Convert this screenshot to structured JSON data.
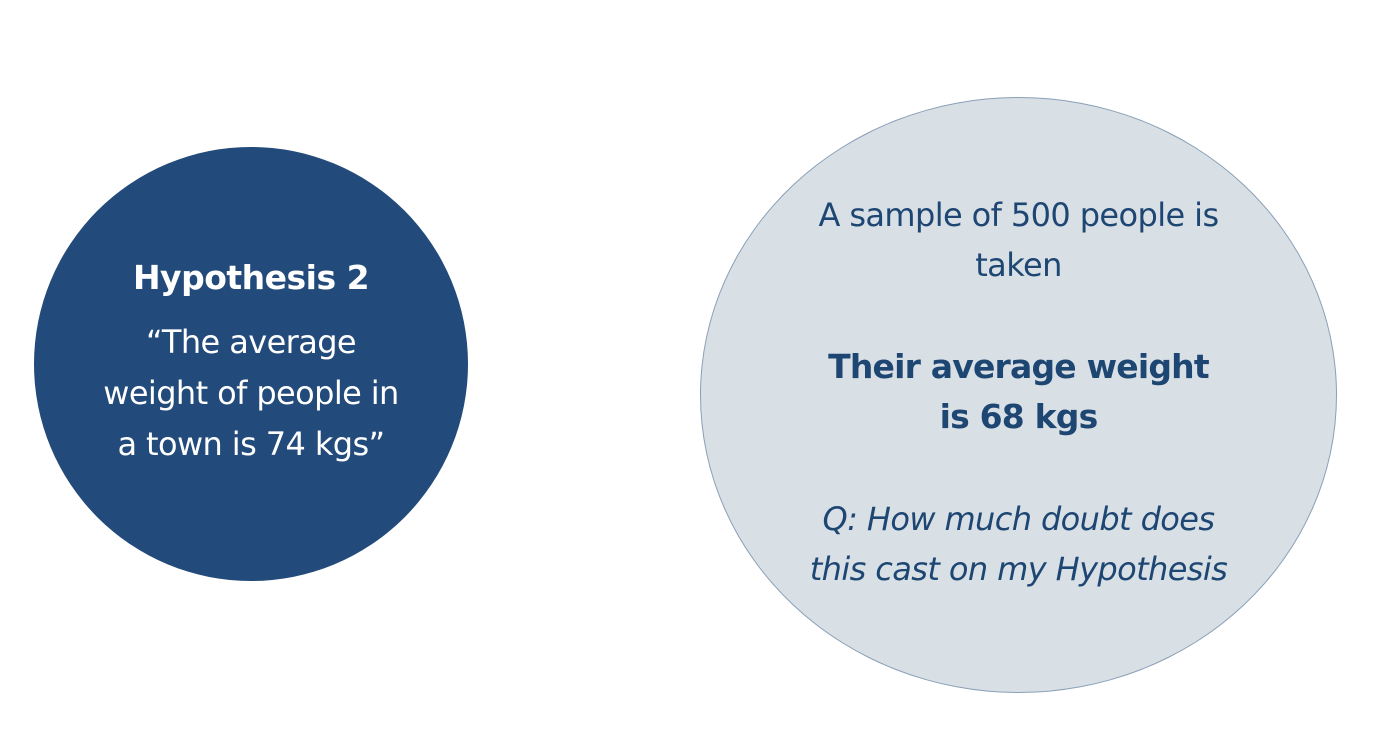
{
  "colors": {
    "background": "#ffffff",
    "hypothesis_fill": "#224a7a",
    "hypothesis_text": "#ffffff",
    "sample_fill": "#d8dfe5",
    "sample_border": "#8aa0b8",
    "sample_text": "#1e4673"
  },
  "hypothesis": {
    "title": "Hypothesis 2",
    "text": "“The average weight of people in a town is 74 kgs”"
  },
  "sample": {
    "description": "A sample of 500 people is taken",
    "result": "Their average weight is 68 kgs",
    "question": "Q: How much doubt does this cast on my Hypothesis"
  }
}
